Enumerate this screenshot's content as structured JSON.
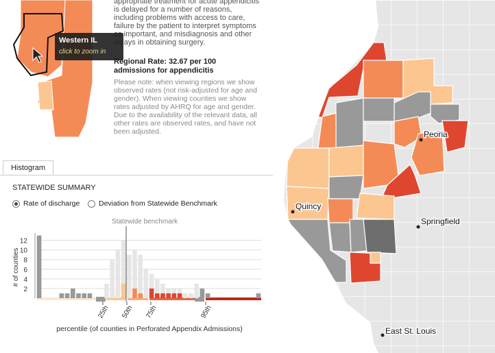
{
  "intro": "appropriate treatment for acute appendicitis is delayed for a number of reasons, including problems with access to care, failure by the patient to interpret symptoms as important, and misdiagnosis and other delays in obtaining surgery.",
  "regional_rate": "Regional Rate: 32.67 per 100 admissions for appendicitis",
  "note": "Please note: when viewing regions we show observed rates (not risk-adjusted for age and gender). When viewing counties we show rates adjusted by AHRQ for age and gender. Due to the availability of the relevant data, all other rates are observed rates, and have not been adjusted.",
  "tooltip": {
    "title": "Western IL",
    "action": "click to zoom in"
  },
  "tab": "Histogram",
  "summary_title": "STATEWIDE SUMMARY",
  "options": [
    "Rate of discharge",
    "Deviation from Statewide Benchmark"
  ],
  "histogram": {
    "type": "bar",
    "benchmark_label": "Statewide benchmark",
    "ylabel": "# of counties",
    "xlabel": "percentile (of counties in Perforated Appendix Admissions)",
    "percentile_labels": [
      "25th",
      "50th",
      "75th",
      "95th"
    ],
    "ylim": [
      0,
      13.5
    ],
    "yticks": [
      2,
      4,
      6,
      8,
      10,
      12
    ],
    "grid": true,
    "statewide_color": "#e6e6e6",
    "statewide_counts": [
      null,
      null,
      null,
      null,
      null,
      null,
      null,
      null,
      null,
      null,
      null,
      null,
      3,
      8,
      10,
      12,
      9,
      10,
      9,
      6,
      5,
      4,
      3,
      2,
      2,
      2,
      1,
      1,
      3,
      2,
      1,
      null,
      null,
      null,
      null,
      null,
      null,
      null,
      null,
      null
    ],
    "region_counts": [
      13,
      null,
      null,
      null,
      1,
      1,
      2,
      1,
      1,
      1,
      null,
      null,
      null,
      null,
      null,
      3,
      null,
      2,
      1,
      null,
      2,
      1,
      1,
      1,
      1,
      1,
      null,
      null,
      null,
      2,
      1,
      null,
      null,
      null,
      null,
      null,
      null,
      null,
      null,
      1
    ],
    "region_colors": [
      "#999999",
      null,
      null,
      null,
      "#999999",
      "#999999",
      "#999999",
      "#999999",
      "#999999",
      "#999999",
      null,
      null,
      null,
      null,
      null,
      "#fcc690",
      null,
      "#f48b57",
      "#f48b57",
      null,
      "#df4630",
      "#df4630",
      "#df4630",
      "#df4630",
      "#df4630",
      "#df4630",
      null,
      null,
      null,
      "#999999",
      "#999999",
      null,
      null,
      null,
      null,
      null,
      null,
      null,
      null,
      "#999999"
    ]
  },
  "cities": [
    "Peoria",
    "Quincy",
    "Springfield",
    "East St. Louis"
  ]
}
